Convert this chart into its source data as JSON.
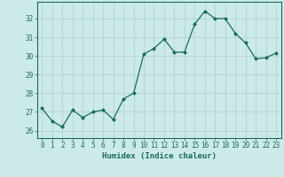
{
  "x": [
    0,
    1,
    2,
    3,
    4,
    5,
    6,
    7,
    8,
    9,
    10,
    11,
    12,
    13,
    14,
    15,
    16,
    17,
    18,
    19,
    20,
    21,
    22,
    23
  ],
  "y": [
    27.2,
    26.5,
    26.2,
    27.1,
    26.7,
    27.0,
    27.1,
    26.6,
    27.7,
    28.0,
    30.1,
    30.4,
    30.9,
    30.2,
    30.2,
    31.7,
    32.4,
    32.0,
    32.0,
    31.2,
    30.7,
    29.85,
    29.9,
    30.15
  ],
  "line_color": "#1a6b5a",
  "marker": "D",
  "marker_size": 2.0,
  "background_color": "#cceae8",
  "grid_color": "#b0d4d0",
  "tick_color": "#1a6b5a",
  "xlabel": "Humidex (Indice chaleur)",
  "xlabel_color": "#1a6b5a",
  "ylabel_ticks": [
    26,
    27,
    28,
    29,
    30,
    31,
    32
  ],
  "xlim": [
    -0.5,
    23.5
  ],
  "ylim": [
    25.6,
    32.9
  ],
  "font_family": "monospace",
  "tick_fontsize": 5.5,
  "xlabel_fontsize": 6.5
}
